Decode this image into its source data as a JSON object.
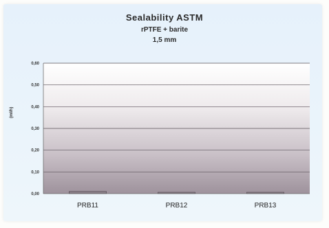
{
  "chart_data": {
    "type": "bar",
    "title": "Sealability ASTM",
    "subtitle_lines": [
      "rPTFE + barite",
      "1,5 mm"
    ],
    "ylabel": "(ml/h)",
    "xlabel": "",
    "categories": [
      "PRB11",
      "PRB12",
      "PRB13"
    ],
    "values": [
      0.01,
      0.005,
      0.003
    ],
    "ylim": [
      0,
      0.6
    ],
    "yticks": [
      "0,00",
      "0,10",
      "0,20",
      "0,30",
      "0,40",
      "0,50",
      "0,60"
    ],
    "grid": true,
    "legend": "none"
  }
}
